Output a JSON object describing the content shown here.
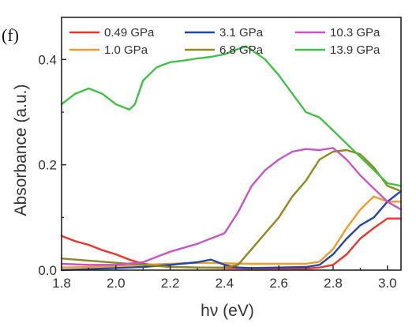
{
  "chart_data": {
    "type": "line",
    "panel_label": "(f)",
    "xlabel": "hν (eV)",
    "ylabel": "Absorbance (a.u.)",
    "xlim": [
      1.8,
      3.05
    ],
    "ylim": [
      0.0,
      0.48
    ],
    "xticks": [
      "1.8",
      "2.0",
      "2.2",
      "2.4",
      "2.6",
      "2.8",
      "3.0"
    ],
    "yticks": [
      "0.0",
      "0.2",
      "0.4"
    ],
    "grid": false,
    "legend_position": "top",
    "series": [
      {
        "name": "0.49 GPa",
        "color": "#e8352f",
        "x": [
          1.8,
          1.85,
          1.9,
          1.95,
          2.0,
          2.05,
          2.1,
          2.2,
          2.3,
          2.4,
          2.5,
          2.6,
          2.7,
          2.75,
          2.8,
          2.85,
          2.9,
          2.95,
          3.0,
          3.05
        ],
        "y": [
          0.065,
          0.055,
          0.048,
          0.038,
          0.03,
          0.02,
          0.012,
          0.006,
          0.005,
          0.004,
          0.003,
          0.003,
          0.003,
          0.005,
          0.01,
          0.03,
          0.06,
          0.08,
          0.098,
          0.098
        ]
      },
      {
        "name": "1.0 GPa",
        "color": "#f39a2a",
        "x": [
          1.8,
          1.9,
          2.0,
          2.1,
          2.2,
          2.3,
          2.4,
          2.5,
          2.6,
          2.7,
          2.75,
          2.8,
          2.85,
          2.9,
          2.95,
          3.0,
          3.05
        ],
        "y": [
          0.005,
          0.006,
          0.008,
          0.01,
          0.012,
          0.014,
          0.013,
          0.012,
          0.012,
          0.012,
          0.016,
          0.04,
          0.08,
          0.115,
          0.14,
          0.13,
          0.13
        ]
      },
      {
        "name": "3.1 GPa",
        "color": "#2446a6",
        "x": [
          1.8,
          1.9,
          2.0,
          2.1,
          2.2,
          2.3,
          2.35,
          2.4,
          2.45,
          2.5,
          2.6,
          2.7,
          2.75,
          2.8,
          2.85,
          2.9,
          2.95,
          3.0,
          3.05
        ],
        "y": [
          0.0,
          0.002,
          0.004,
          0.006,
          0.01,
          0.015,
          0.02,
          0.01,
          0.005,
          0.004,
          0.005,
          0.006,
          0.01,
          0.03,
          0.06,
          0.085,
          0.1,
          0.13,
          0.15
        ]
      },
      {
        "name": "6.8 GPa",
        "color": "#8c8a22",
        "x": [
          1.8,
          1.9,
          2.0,
          2.1,
          2.2,
          2.3,
          2.4,
          2.45,
          2.5,
          2.55,
          2.6,
          2.65,
          2.7,
          2.75,
          2.8,
          2.85,
          2.9,
          2.95,
          3.0,
          3.05
        ],
        "y": [
          0.022,
          0.018,
          0.014,
          0.01,
          0.006,
          0.005,
          0.005,
          0.01,
          0.04,
          0.07,
          0.1,
          0.14,
          0.17,
          0.21,
          0.225,
          0.228,
          0.22,
          0.195,
          0.16,
          0.15
        ]
      },
      {
        "name": "10.3 GPa",
        "color": "#c556c4",
        "x": [
          1.8,
          1.9,
          2.0,
          2.1,
          2.15,
          2.2,
          2.3,
          2.4,
          2.45,
          2.5,
          2.55,
          2.6,
          2.65,
          2.7,
          2.75,
          2.8,
          2.85,
          2.9,
          2.95,
          3.0,
          3.05
        ],
        "y": [
          0.012,
          0.01,
          0.01,
          0.015,
          0.025,
          0.035,
          0.05,
          0.07,
          0.11,
          0.16,
          0.19,
          0.21,
          0.225,
          0.23,
          0.228,
          0.232,
          0.21,
          0.18,
          0.155,
          0.13,
          0.115
        ]
      },
      {
        "name": "13.9 GPa",
        "color": "#45bf4a",
        "x": [
          1.8,
          1.85,
          1.9,
          1.95,
          2.0,
          2.05,
          2.07,
          2.1,
          2.15,
          2.2,
          2.25,
          2.3,
          2.35,
          2.4,
          2.45,
          2.48,
          2.5,
          2.55,
          2.6,
          2.65,
          2.7,
          2.75,
          2.8,
          2.85,
          2.9,
          2.95,
          3.0,
          3.05
        ],
        "y": [
          0.315,
          0.335,
          0.345,
          0.335,
          0.315,
          0.305,
          0.315,
          0.36,
          0.385,
          0.395,
          0.398,
          0.402,
          0.405,
          0.41,
          0.42,
          0.425,
          0.418,
          0.4,
          0.37,
          0.335,
          0.3,
          0.29,
          0.265,
          0.24,
          0.215,
          0.19,
          0.165,
          0.16
        ]
      }
    ]
  }
}
